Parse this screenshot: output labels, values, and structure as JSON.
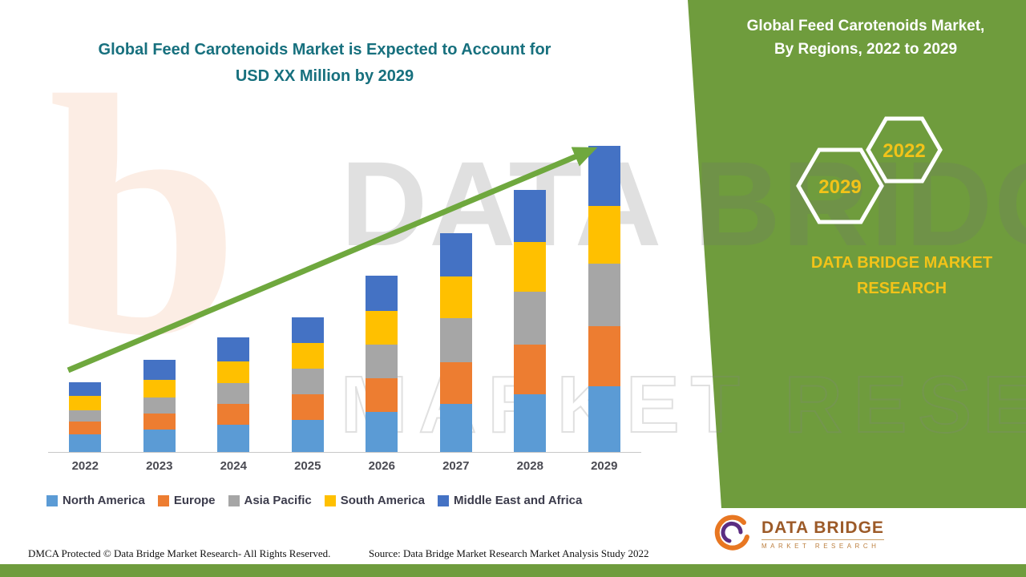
{
  "titles": {
    "left_line1": "Global Feed Carotenoids Market is Expected to Account for",
    "left_line2": "USD XX Million by 2029",
    "right_line1": "Global Feed Carotenoids Market,",
    "right_line2": "By Regions, 2022 to 2029"
  },
  "side_panel": {
    "hex_left_year": "2029",
    "hex_right_year": "2022",
    "brand_line1": "DATA BRIDGE MARKET",
    "brand_line2": "RESEARCH"
  },
  "chart_data": {
    "type": "bar",
    "stacked": true,
    "title": "Global Feed Carotenoids Market is Expected to Account for USD XX Million by 2029",
    "categories": [
      "2022",
      "2023",
      "2024",
      "2025",
      "2026",
      "2027",
      "2028",
      "2029"
    ],
    "series": [
      {
        "name": "North America",
        "color": "#5b9bd5",
        "values": [
          22,
          28,
          34,
          40,
          50,
          60,
          72,
          82
        ]
      },
      {
        "name": "Europe",
        "color": "#ed7d31",
        "values": [
          16,
          20,
          26,
          32,
          42,
          52,
          62,
          75
        ]
      },
      {
        "name": "Asia Pacific",
        "color": "#a6a6a6",
        "values": [
          14,
          20,
          26,
          32,
          42,
          55,
          66,
          78
        ]
      },
      {
        "name": "South America",
        "color": "#ffc000",
        "values": [
          18,
          22,
          27,
          32,
          42,
          52,
          62,
          72
        ]
      },
      {
        "name": "Middle East and Africa",
        "color": "#4472c4",
        "values": [
          17,
          25,
          30,
          32,
          44,
          54,
          65,
          75
        ]
      }
    ],
    "xlabel": "",
    "ylabel": "",
    "units": "relative units (actual values masked as USD XX Million)",
    "value_axis_visible": false,
    "grid": false,
    "legend_position": "bottom",
    "trend_arrow": {
      "from_category": "2022",
      "to_category": "2029",
      "color": "#6fa83e"
    }
  },
  "watermark": {
    "line1": "DATA BRIDGE",
    "line2": "MARKET RESEARCH",
    "monogram": "b"
  },
  "footer": {
    "dmca": "DMCA Protected © Data Bridge Market Research- All Rights Reserved.",
    "source": "Source: Data Bridge Market Research Market Analysis Study 2022"
  },
  "logo": {
    "name": "DATA BRIDGE",
    "tagline": "MARKET RESEARCH"
  },
  "colors": {
    "panel_green": "#6f9c3d",
    "arrow_green": "#6fa83e",
    "title_teal": "#17707e",
    "accent_yellow": "#f2c319"
  }
}
